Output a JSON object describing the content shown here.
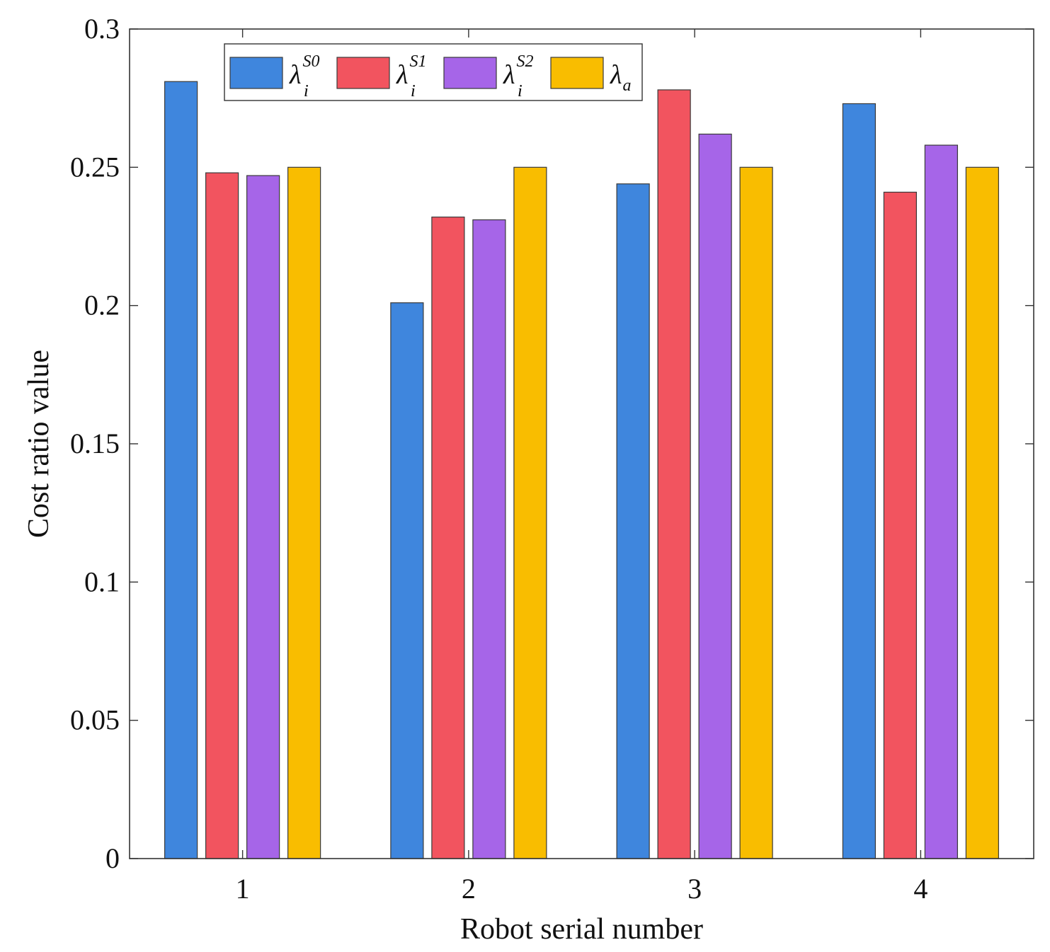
{
  "chart_data": {
    "type": "bar",
    "title": "",
    "xlabel": "Robot serial number",
    "ylabel": "Cost ratio value",
    "categories": [
      "1",
      "2",
      "3",
      "4"
    ],
    "ylim": [
      0,
      0.3
    ],
    "yticks": [
      0,
      0.05,
      0.1,
      0.15,
      0.2,
      0.25,
      0.3
    ],
    "ytick_labels": [
      "0",
      "0.05",
      "0.1",
      "0.15",
      "0.2",
      "0.25",
      "0.3"
    ],
    "grid": false,
    "legend_position": "top-left",
    "series": [
      {
        "name": "λ_i^S0",
        "symbol": "λ",
        "sub": "i",
        "sup": "S0",
        "color": "#3f86dd",
        "values": [
          0.281,
          0.201,
          0.244,
          0.273
        ]
      },
      {
        "name": "λ_i^S1",
        "symbol": "λ",
        "sub": "i",
        "sup": "S1",
        "color": "#f2545f",
        "values": [
          0.248,
          0.232,
          0.278,
          0.241
        ]
      },
      {
        "name": "λ_i^S2",
        "symbol": "λ",
        "sub": "i",
        "sup": "S2",
        "color": "#a665e8",
        "values": [
          0.247,
          0.231,
          0.262,
          0.258
        ]
      },
      {
        "name": "λ_a",
        "symbol": "λ",
        "sub": "a",
        "sup": "",
        "color": "#f9bd00",
        "values": [
          0.25,
          0.25,
          0.25,
          0.25
        ]
      }
    ]
  }
}
